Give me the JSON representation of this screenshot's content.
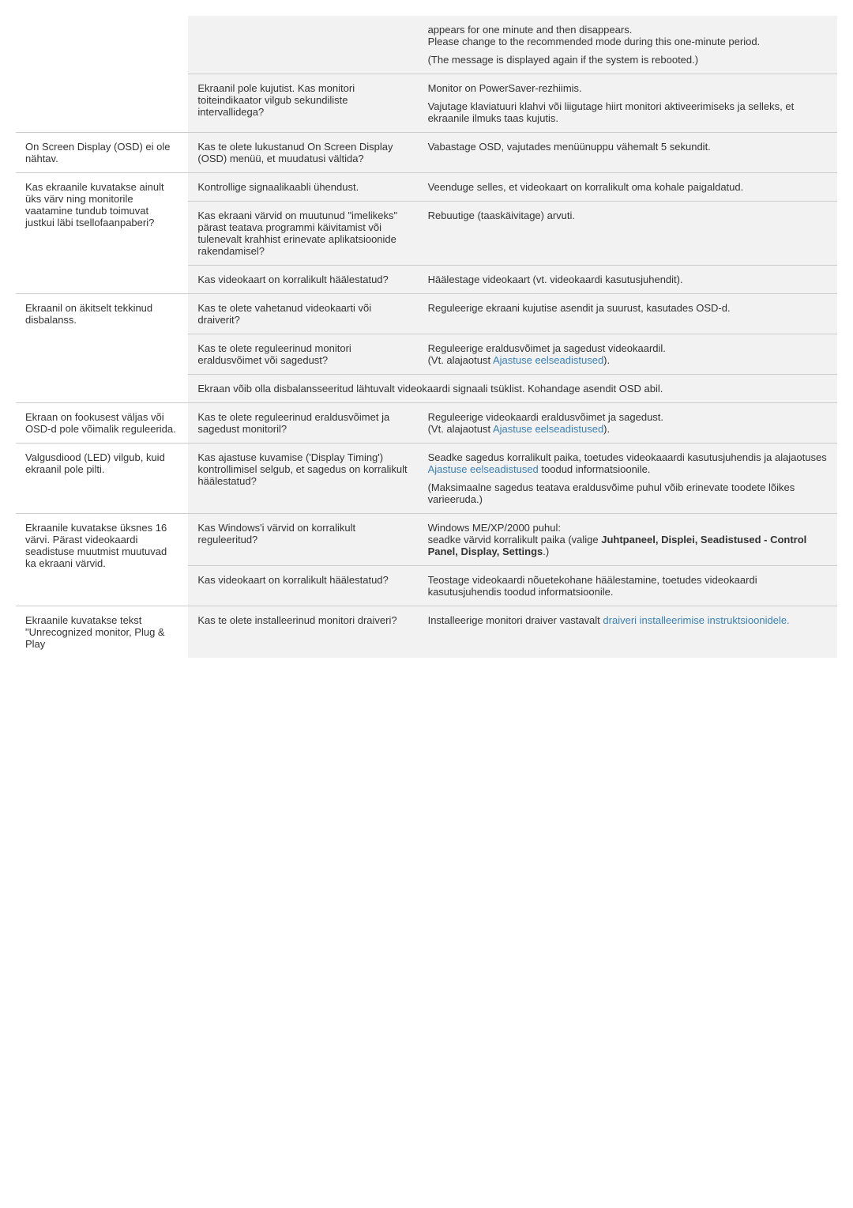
{
  "rows": [
    {
      "col1": "",
      "col2": "",
      "col3_parts": [
        {
          "t": "text",
          "v": "appears for one minute and then disappears."
        },
        {
          "t": "br"
        },
        {
          "t": "text",
          "v": "Please change to the recommended mode during this one-minute period."
        },
        {
          "t": "pbr"
        },
        {
          "t": "text",
          "v": "(The message is displayed again if the system is rebooted.)"
        }
      ],
      "sep": false
    },
    {
      "col1": "",
      "col2_parts": [
        {
          "t": "text",
          "v": "Ekraanil pole kujutist. Kas monitori toiteindikaator vilgub sekundiliste intervallidega?"
        }
      ],
      "col3_parts": [
        {
          "t": "text",
          "v": "Monitor on PowerSaver-rezhiimis."
        },
        {
          "t": "pbr"
        },
        {
          "t": "text",
          "v": "Vajutage klaviatuuri klahvi või liigutage hiirt monitori aktiveerimiseks ja selleks, et ekraanile ilmuks taas kujutis."
        }
      ],
      "inner_sep": true
    },
    {
      "col1": "On Screen Display (OSD) ei ole nähtav.",
      "col2_parts": [
        {
          "t": "text",
          "v": "Kas te olete lukustanud On Screen Display (OSD) menüü, et muudatusi vältida?"
        }
      ],
      "col3_parts": [
        {
          "t": "text",
          "v": "Vabastage OSD, vajutades menüünuppu vähemalt 5 sekundit."
        }
      ],
      "sep": true
    },
    {
      "col1": "Kas ekraanile kuvatakse ainult üks värv ning monitorile vaatamine tundub toimuvat justkui läbi tsellofaanpaberi?",
      "col1_rowspan": 3,
      "col2_parts": [
        {
          "t": "text",
          "v": "Kontrollige signaalikaabli ühendust."
        }
      ],
      "col3_parts": [
        {
          "t": "text",
          "v": "Veenduge selles, et videokaart on korralikult oma kohale paigaldatud."
        }
      ],
      "sep": true
    },
    {
      "col2_parts": [
        {
          "t": "text",
          "v": "Kas ekraani värvid on muutunud \"imelikeks\" pärast teatava programmi käivitamist või tulenevalt krahhist erinevate aplikatsioonide rakendamisel?"
        }
      ],
      "col3_parts": [
        {
          "t": "text",
          "v": "Rebuutige (taaskäivitage) arvuti."
        }
      ],
      "inner_sep": true
    },
    {
      "col2_parts": [
        {
          "t": "text",
          "v": "Kas videokaart on korralikult häälestatud?"
        }
      ],
      "col3_parts": [
        {
          "t": "text",
          "v": "Häälestage videokaart (vt. videokaardi kasutusjuhendit)."
        }
      ],
      "inner_sep": true
    },
    {
      "col1": "Ekraanil on äkitselt tekkinud disbalanss.",
      "col1_rowspan": 3,
      "col2_parts": [
        {
          "t": "text",
          "v": "Kas te olete vahetanud videokaarti või draiverit?"
        }
      ],
      "col3_parts": [
        {
          "t": "text",
          "v": "Reguleerige ekraani kujutise asendit ja suurust, kasutades OSD-d."
        }
      ],
      "sep": true
    },
    {
      "col2_parts": [
        {
          "t": "text",
          "v": "Kas te olete reguleerinud monitori eraldusvõimet või sagedust?"
        }
      ],
      "col3_parts": [
        {
          "t": "text",
          "v": "Reguleerige eraldusvõimet ja sagedust videokaardil."
        },
        {
          "t": "br"
        },
        {
          "t": "text",
          "v": "(Vt. alajaotust "
        },
        {
          "t": "link",
          "v": "Ajastuse eelseadistused"
        },
        {
          "t": "text",
          "v": ")."
        }
      ],
      "inner_sep": true
    },
    {
      "col2_parts": [
        {
          "t": "text",
          "v": "Ekraan võib olla disbalansseeritud lähtuvalt videokaardi signaali tsüklist. Kohandage asendit OSD abil."
        }
      ],
      "col2_colspan": 2,
      "inner_sep": true
    },
    {
      "col1": "Ekraan on fookusest väljas või OSD-d pole võimalik reguleerida.",
      "col2_parts": [
        {
          "t": "text",
          "v": "Kas te olete reguleerinud eraldusvõimet ja sagedust monitoril?"
        }
      ],
      "col3_parts": [
        {
          "t": "text",
          "v": "Reguleerige videokaardi eraldusvõimet ja sagedust."
        },
        {
          "t": "br"
        },
        {
          "t": "text",
          "v": "(Vt. alajaotust "
        },
        {
          "t": "link",
          "v": "Ajastuse eelseadistused"
        },
        {
          "t": "text",
          "v": ")."
        }
      ],
      "sep": true
    },
    {
      "col1": "Valgusdiood (LED) vilgub, kuid ekraanil pole pilti.",
      "col2_parts": [
        {
          "t": "text",
          "v": "Kas ajastuse kuvamise ('Display Timing') kontrollimisel selgub, et sagedus on korralikult häälestatud?"
        }
      ],
      "col3_parts": [
        {
          "t": "text",
          "v": "Seadke sagedus korralikult paika, toetudes videokaaardi kasutusjuhendis ja alajaotuses "
        },
        {
          "t": "link",
          "v": "Ajastuse eelseadistused"
        },
        {
          "t": "text",
          "v": " toodud informatsioonile."
        },
        {
          "t": "pbr"
        },
        {
          "t": "text",
          "v": "(Maksimaalne sagedus teatava eraldusvõime puhul võib erinevate toodete lõikes varieeruda.)"
        }
      ],
      "sep": true
    },
    {
      "col1": "Ekraanile kuvatakse üksnes 16 värvi. Pärast videokaardi seadistuse muutmist muutuvad ka ekraani värvid.",
      "col1_rowspan": 2,
      "col2_parts": [
        {
          "t": "text",
          "v": "Kas Windows'i värvid on korralikult reguleeritud?"
        }
      ],
      "col3_parts": [
        {
          "t": "text",
          "v": "Windows ME/XP/2000 puhul:"
        },
        {
          "t": "br"
        },
        {
          "t": "text",
          "v": "seadke värvid korralikult paika (valige "
        },
        {
          "t": "bold",
          "v": "Juhtpaneel, Displei, Seadistused - Control Panel, Display, Settings"
        },
        {
          "t": "text",
          "v": ".)"
        }
      ],
      "sep": true
    },
    {
      "col2_parts": [
        {
          "t": "text",
          "v": "Kas videokaart on korralikult häälestatud?"
        }
      ],
      "col3_parts": [
        {
          "t": "text",
          "v": "Teostage videokaardi nõuetekohane häälestamine, toetudes videokaardi kasutusjuhendis toodud informatsioonile."
        }
      ],
      "inner_sep": true
    },
    {
      "col1": "Ekraanile kuvatakse tekst \"Unrecognized monitor, Plug & Play",
      "col2_parts": [
        {
          "t": "text",
          "v": "Kas te olete installeerinud monitori draiveri?"
        }
      ],
      "col3_parts": [
        {
          "t": "text",
          "v": "Installeerige monitori draiver vastavalt "
        },
        {
          "t": "link",
          "v": "draiveri installeerimise instruktsioonidele."
        }
      ],
      "sep": true
    }
  ]
}
